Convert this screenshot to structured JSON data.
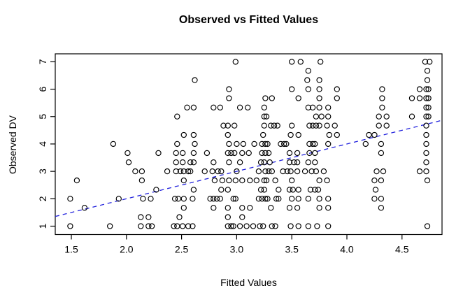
{
  "title": "Observed vs Fitted Values",
  "x_axis": {
    "label": "Fitted Values",
    "ticks": [
      "1.5",
      "2.0",
      "2.5",
      "3.0",
      "3.5",
      "4.0",
      "4.5"
    ],
    "tick_values": [
      1.5,
      2.0,
      2.5,
      3.0,
      3.5,
      4.0,
      4.5
    ],
    "range": [
      1.354,
      4.863
    ]
  },
  "y_axis": {
    "label": "Observed DV",
    "ticks": [
      "1",
      "2",
      "3",
      "4",
      "5",
      "6",
      "7"
    ],
    "tick_values": [
      1,
      2,
      3,
      4,
      5,
      6,
      7
    ],
    "range": [
      0.694,
      7.29
    ]
  },
  "colors": {
    "point_stroke": "#000000",
    "reference_line": "#2222dd",
    "background": "#ffffff",
    "text": "#000000"
  },
  "chart_data": {
    "type": "scatter",
    "title": "Observed vs Fitted Values",
    "xlabel": "Fitted Values",
    "ylabel": "Observed DV",
    "xlim": [
      1.354,
      4.863
    ],
    "ylim": [
      0.694,
      7.29
    ],
    "grid": false,
    "legend": false,
    "marker": "open-circle",
    "reference_line": {
      "kind": "identity",
      "intercept": 0,
      "slope": 1,
      "style": "dashed",
      "color": "#2222dd"
    },
    "points": [
      [
        2.99,
        7
      ],
      [
        3.5,
        7
      ],
      [
        3.58,
        7
      ],
      [
        3.76,
        7
      ],
      [
        4.71,
        7
      ],
      [
        4.75,
        7
      ],
      [
        3.65,
        6.67
      ],
      [
        4.73,
        6.67
      ],
      [
        2.62,
        6.33
      ],
      [
        3.64,
        6.33
      ],
      [
        3.75,
        6.33
      ],
      [
        4.73,
        6.33
      ],
      [
        2.93,
        6
      ],
      [
        3.5,
        6
      ],
      [
        3.65,
        6
      ],
      [
        3.75,
        6
      ],
      [
        3.91,
        6
      ],
      [
        4.32,
        6
      ],
      [
        4.66,
        6
      ],
      [
        4.72,
        6
      ],
      [
        4.74,
        6
      ],
      [
        2.93,
        5.67
      ],
      [
        3.26,
        5.67
      ],
      [
        3.32,
        5.67
      ],
      [
        3.56,
        5.67
      ],
      [
        3.75,
        5.67
      ],
      [
        3.91,
        5.67
      ],
      [
        4.32,
        5.67
      ],
      [
        4.59,
        5.67
      ],
      [
        4.66,
        5.67
      ],
      [
        4.72,
        5.67
      ],
      [
        4.74,
        5.67
      ],
      [
        2.55,
        5.33
      ],
      [
        2.61,
        5.33
      ],
      [
        2.79,
        5.33
      ],
      [
        2.85,
        5.33
      ],
      [
        3.03,
        5.33
      ],
      [
        3.1,
        5.33
      ],
      [
        3.25,
        5.33
      ],
      [
        3.65,
        5.33
      ],
      [
        3.69,
        5.33
      ],
      [
        3.75,
        5.33
      ],
      [
        3.83,
        5.33
      ],
      [
        4.32,
        5.33
      ],
      [
        4.72,
        5.33
      ],
      [
        4.74,
        5.33
      ],
      [
        2.46,
        5
      ],
      [
        3.25,
        5
      ],
      [
        3.27,
        5
      ],
      [
        3.72,
        5
      ],
      [
        3.77,
        5
      ],
      [
        3.83,
        5
      ],
      [
        4.29,
        5
      ],
      [
        4.36,
        5
      ],
      [
        4.59,
        5
      ],
      [
        4.72,
        5
      ],
      [
        4.74,
        5
      ],
      [
        2.88,
        4.67
      ],
      [
        2.92,
        4.67
      ],
      [
        2.98,
        4.67
      ],
      [
        3.25,
        4.67
      ],
      [
        3.31,
        4.67
      ],
      [
        3.34,
        4.67
      ],
      [
        3.37,
        4.67
      ],
      [
        3.5,
        4.67
      ],
      [
        3.66,
        4.67
      ],
      [
        3.69,
        4.67
      ],
      [
        3.72,
        4.67
      ],
      [
        3.75,
        4.67
      ],
      [
        3.82,
        4.67
      ],
      [
        3.89,
        4.67
      ],
      [
        4.29,
        4.67
      ],
      [
        4.36,
        4.67
      ],
      [
        4.72,
        4.67
      ],
      [
        2.52,
        4.33
      ],
      [
        2.61,
        4.33
      ],
      [
        2.92,
        4.33
      ],
      [
        3.24,
        4.33
      ],
      [
        3.49,
        4.33
      ],
      [
        3.56,
        4.33
      ],
      [
        3.84,
        4.33
      ],
      [
        3.91,
        4.33
      ],
      [
        4.2,
        4.33
      ],
      [
        4.25,
        4.33
      ],
      [
        4.72,
        4.33
      ],
      [
        1.88,
        4
      ],
      [
        2.46,
        4
      ],
      [
        2.62,
        4
      ],
      [
        2.93,
        4
      ],
      [
        3.0,
        4
      ],
      [
        3.06,
        4
      ],
      [
        3.16,
        4
      ],
      [
        3.23,
        4
      ],
      [
        3.26,
        4
      ],
      [
        3.28,
        4
      ],
      [
        3.4,
        4
      ],
      [
        3.43,
        4
      ],
      [
        3.45,
        4
      ],
      [
        3.66,
        4
      ],
      [
        3.69,
        4
      ],
      [
        3.71,
        4
      ],
      [
        3.83,
        4
      ],
      [
        4.17,
        4
      ],
      [
        4.31,
        4
      ],
      [
        4.72,
        4
      ],
      [
        2.01,
        3.67
      ],
      [
        2.29,
        3.67
      ],
      [
        2.45,
        3.67
      ],
      [
        2.51,
        3.67
      ],
      [
        2.61,
        3.67
      ],
      [
        2.73,
        3.67
      ],
      [
        2.92,
        3.67
      ],
      [
        2.95,
        3.67
      ],
      [
        2.98,
        3.67
      ],
      [
        3.05,
        3.67
      ],
      [
        3.11,
        3.67
      ],
      [
        3.23,
        3.67
      ],
      [
        3.26,
        3.67
      ],
      [
        3.29,
        3.67
      ],
      [
        3.48,
        3.67
      ],
      [
        3.55,
        3.67
      ],
      [
        3.66,
        3.67
      ],
      [
        3.71,
        3.67
      ],
      [
        4.31,
        3.67
      ],
      [
        4.72,
        3.67
      ],
      [
        2.02,
        3.33
      ],
      [
        2.45,
        3.33
      ],
      [
        2.51,
        3.33
      ],
      [
        2.58,
        3.33
      ],
      [
        2.61,
        3.33
      ],
      [
        2.79,
        3.33
      ],
      [
        2.93,
        3.33
      ],
      [
        3.03,
        3.33
      ],
      [
        3.22,
        3.33
      ],
      [
        3.25,
        3.33
      ],
      [
        3.3,
        3.33
      ],
      [
        3.48,
        3.33
      ],
      [
        3.52,
        3.33
      ],
      [
        3.55,
        3.33
      ],
      [
        3.65,
        3.33
      ],
      [
        3.71,
        3.33
      ],
      [
        4.72,
        3.33
      ],
      [
        2.08,
        3
      ],
      [
        2.14,
        3
      ],
      [
        2.37,
        3
      ],
      [
        2.45,
        3
      ],
      [
        2.49,
        3
      ],
      [
        2.52,
        3
      ],
      [
        2.56,
        3
      ],
      [
        2.58,
        3
      ],
      [
        2.71,
        3
      ],
      [
        2.78,
        3
      ],
      [
        2.83,
        3
      ],
      [
        2.86,
        3
      ],
      [
        3.0,
        3
      ],
      [
        3.2,
        3
      ],
      [
        3.26,
        3
      ],
      [
        3.29,
        3
      ],
      [
        3.32,
        3
      ],
      [
        3.42,
        3
      ],
      [
        3.46,
        3
      ],
      [
        3.49,
        3
      ],
      [
        3.55,
        3
      ],
      [
        3.62,
        3
      ],
      [
        3.68,
        3
      ],
      [
        3.72,
        3
      ],
      [
        3.79,
        3
      ],
      [
        4.27,
        3
      ],
      [
        4.33,
        3
      ],
      [
        4.66,
        3
      ],
      [
        4.72,
        3
      ],
      [
        1.55,
        2.67
      ],
      [
        2.14,
        2.67
      ],
      [
        2.52,
        2.67
      ],
      [
        2.8,
        2.67
      ],
      [
        2.87,
        2.67
      ],
      [
        2.93,
        2.67
      ],
      [
        2.99,
        2.67
      ],
      [
        3.05,
        2.67
      ],
      [
        3.12,
        2.67
      ],
      [
        3.18,
        2.67
      ],
      [
        3.25,
        2.67
      ],
      [
        3.27,
        2.67
      ],
      [
        3.35,
        2.67
      ],
      [
        3.5,
        2.67
      ],
      [
        3.75,
        2.67
      ],
      [
        3.82,
        2.67
      ],
      [
        4.25,
        2.67
      ],
      [
        4.31,
        2.67
      ],
      [
        4.73,
        2.67
      ],
      [
        2.27,
        2.33
      ],
      [
        2.61,
        2.33
      ],
      [
        2.86,
        2.33
      ],
      [
        2.92,
        2.33
      ],
      [
        3.22,
        2.33
      ],
      [
        3.25,
        2.33
      ],
      [
        3.38,
        2.33
      ],
      [
        3.48,
        2.33
      ],
      [
        3.51,
        2.33
      ],
      [
        3.56,
        2.33
      ],
      [
        3.67,
        2.33
      ],
      [
        3.71,
        2.33
      ],
      [
        3.74,
        2.33
      ],
      [
        4.26,
        2.33
      ],
      [
        1.49,
        2
      ],
      [
        1.93,
        2
      ],
      [
        2.15,
        2
      ],
      [
        2.22,
        2
      ],
      [
        2.44,
        2
      ],
      [
        2.47,
        2
      ],
      [
        2.52,
        2
      ],
      [
        2.6,
        2
      ],
      [
        2.76,
        2
      ],
      [
        2.79,
        2
      ],
      [
        2.82,
        2
      ],
      [
        2.85,
        2
      ],
      [
        2.97,
        2
      ],
      [
        2.99,
        2
      ],
      [
        3.2,
        2
      ],
      [
        3.23,
        2
      ],
      [
        3.26,
        2
      ],
      [
        3.28,
        2
      ],
      [
        3.36,
        2
      ],
      [
        3.38,
        2
      ],
      [
        3.5,
        2
      ],
      [
        3.56,
        2
      ],
      [
        3.65,
        2
      ],
      [
        3.75,
        2
      ],
      [
        3.83,
        2
      ],
      [
        4.25,
        2
      ],
      [
        4.31,
        2
      ],
      [
        1.62,
        1.67
      ],
      [
        2.52,
        1.67
      ],
      [
        2.79,
        1.67
      ],
      [
        2.92,
        1.67
      ],
      [
        3.05,
        1.67
      ],
      [
        3.12,
        1.67
      ],
      [
        3.31,
        1.67
      ],
      [
        3.48,
        1.67
      ],
      [
        3.55,
        1.67
      ],
      [
        3.75,
        1.67
      ],
      [
        3.83,
        1.67
      ],
      [
        4.31,
        1.67
      ],
      [
        2.13,
        1.33
      ],
      [
        2.2,
        1.33
      ],
      [
        2.48,
        1.33
      ],
      [
        2.92,
        1.33
      ],
      [
        3.05,
        1.33
      ],
      [
        1.49,
        1
      ],
      [
        1.85,
        1
      ],
      [
        2.13,
        1
      ],
      [
        2.2,
        1
      ],
      [
        2.23,
        1
      ],
      [
        2.43,
        1
      ],
      [
        2.46,
        1
      ],
      [
        2.51,
        1
      ],
      [
        2.56,
        1
      ],
      [
        2.6,
        1
      ],
      [
        2.92,
        1
      ],
      [
        2.95,
        1
      ],
      [
        2.97,
        1
      ],
      [
        3.03,
        1
      ],
      [
        3.09,
        1
      ],
      [
        3.15,
        1
      ],
      [
        3.21,
        1
      ],
      [
        3.24,
        1
      ],
      [
        3.32,
        1
      ],
      [
        3.35,
        1
      ],
      [
        3.49,
        1
      ],
      [
        3.56,
        1
      ],
      [
        3.65,
        1
      ],
      [
        3.73,
        1
      ],
      [
        3.83,
        1
      ],
      [
        4.73,
        1
      ]
    ]
  }
}
